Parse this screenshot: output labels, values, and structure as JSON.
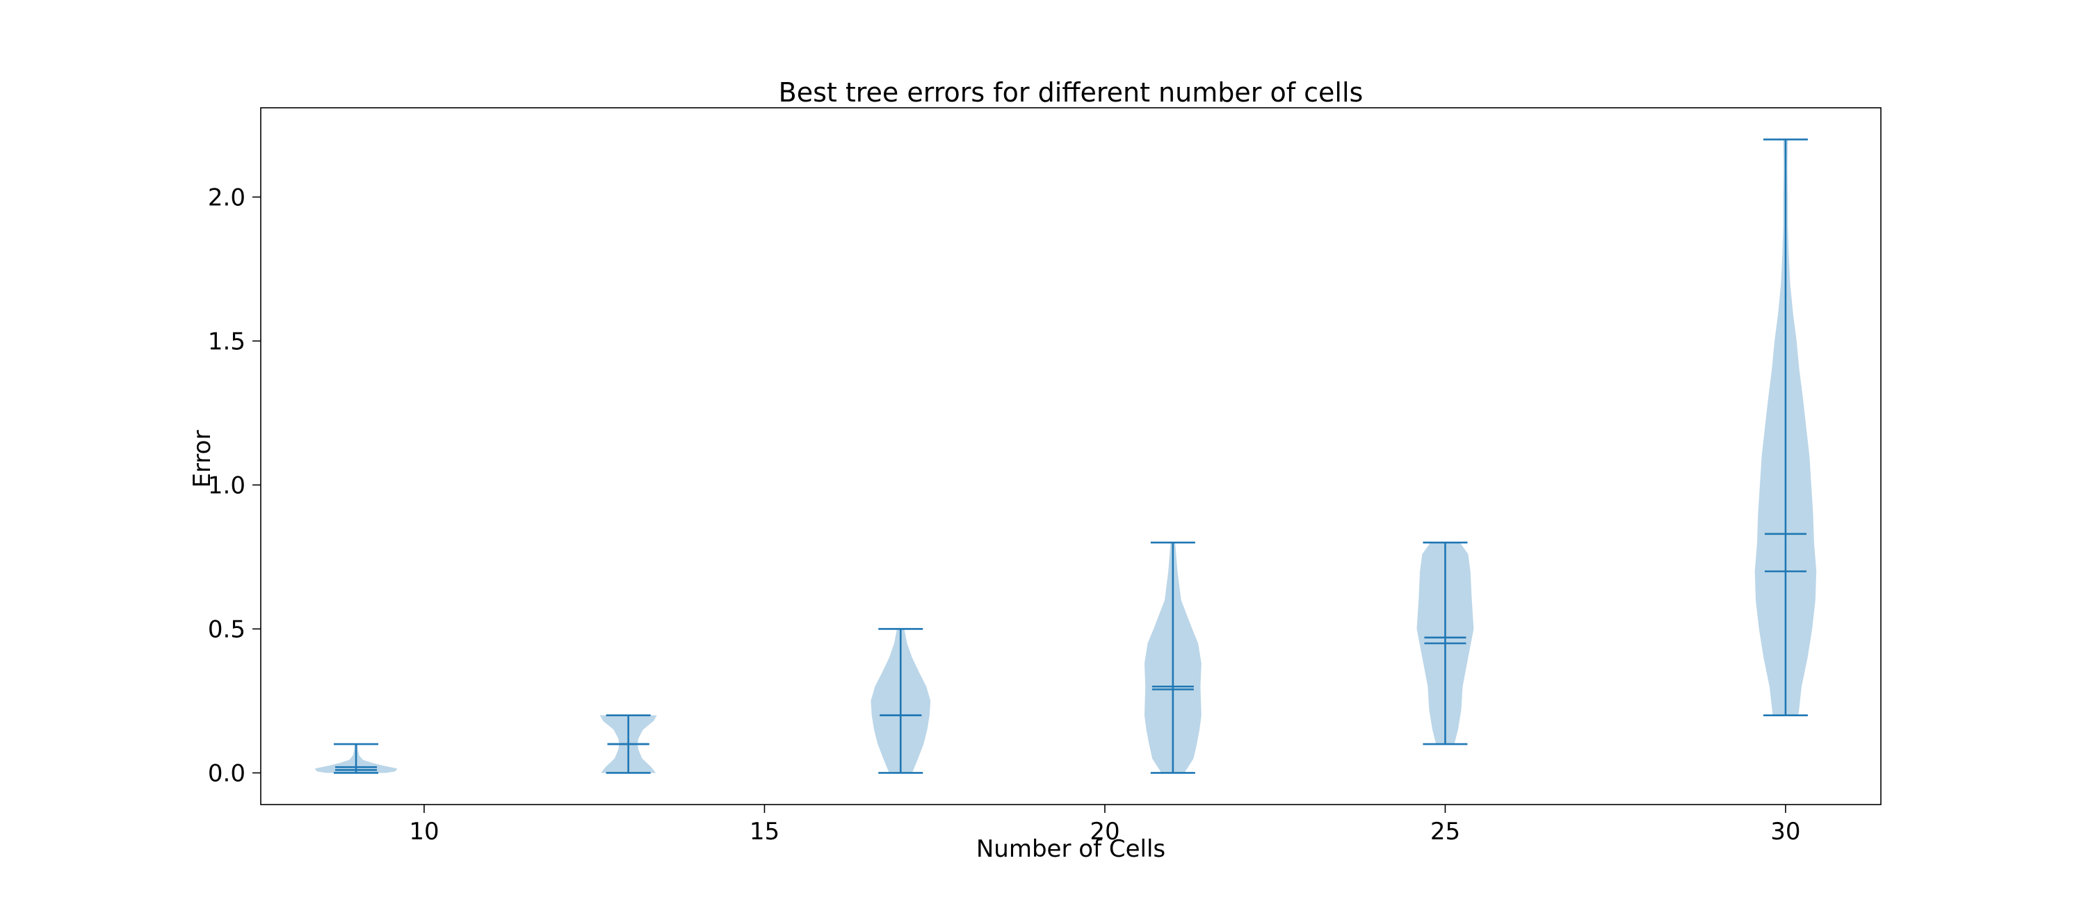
{
  "chart_data": {
    "type": "violin",
    "title": "Best tree errors for different number of cells",
    "xlabel": "Number of Cells",
    "ylabel": "Error",
    "xlim": [
      7.6,
      31.4
    ],
    "ylim": [
      -0.11,
      2.31
    ],
    "xticks": [
      10,
      15,
      20,
      25,
      30
    ],
    "yticks": [
      0.0,
      0.5,
      1.0,
      1.5,
      2.0
    ],
    "ytick_labels": [
      "0.0",
      "0.5",
      "1.0",
      "1.5",
      "2.0"
    ],
    "grid": false,
    "legend": "none",
    "colors": {
      "body": "#1f77b4",
      "body_opacity": 0.3,
      "line": "#1f77b4",
      "axis": "#000000"
    },
    "violins": [
      {
        "x": 9,
        "min": 0.0,
        "max": 0.1,
        "mean": 0.02,
        "median": 0.01,
        "density": [
          [
            0.0,
            0.65
          ],
          [
            0.005,
            0.85
          ],
          [
            0.015,
            0.9
          ],
          [
            0.025,
            0.6
          ],
          [
            0.035,
            0.35
          ],
          [
            0.045,
            0.15
          ],
          [
            0.06,
            0.07
          ],
          [
            0.08,
            0.04
          ],
          [
            0.1,
            0.03
          ]
        ]
      },
      {
        "x": 13,
        "min": 0.0,
        "max": 0.2,
        "mean": 0.1,
        "median": 0.1,
        "density": [
          [
            0.0,
            0.6
          ],
          [
            0.02,
            0.5
          ],
          [
            0.05,
            0.3
          ],
          [
            0.08,
            0.22
          ],
          [
            0.1,
            0.2
          ],
          [
            0.12,
            0.22
          ],
          [
            0.15,
            0.32
          ],
          [
            0.18,
            0.55
          ],
          [
            0.2,
            0.62
          ]
        ]
      },
      {
        "x": 17,
        "min": 0.0,
        "max": 0.5,
        "mean": 0.2,
        "median": 0.2,
        "density": [
          [
            0.0,
            0.25
          ],
          [
            0.05,
            0.38
          ],
          [
            0.1,
            0.5
          ],
          [
            0.15,
            0.58
          ],
          [
            0.2,
            0.63
          ],
          [
            0.25,
            0.65
          ],
          [
            0.3,
            0.56
          ],
          [
            0.35,
            0.4
          ],
          [
            0.4,
            0.25
          ],
          [
            0.45,
            0.14
          ],
          [
            0.5,
            0.08
          ]
        ]
      },
      {
        "x": 21,
        "min": 0.0,
        "max": 0.8,
        "mean": 0.3,
        "median": 0.29,
        "density": [
          [
            0.0,
            0.25
          ],
          [
            0.05,
            0.45
          ],
          [
            0.1,
            0.52
          ],
          [
            0.15,
            0.58
          ],
          [
            0.2,
            0.62
          ],
          [
            0.3,
            0.6
          ],
          [
            0.38,
            0.62
          ],
          [
            0.45,
            0.55
          ],
          [
            0.5,
            0.42
          ],
          [
            0.55,
            0.3
          ],
          [
            0.6,
            0.18
          ],
          [
            0.7,
            0.1
          ],
          [
            0.8,
            0.05
          ]
        ]
      },
      {
        "x": 25,
        "min": 0.1,
        "max": 0.8,
        "mean": 0.47,
        "median": 0.45,
        "density": [
          [
            0.1,
            0.2
          ],
          [
            0.15,
            0.28
          ],
          [
            0.22,
            0.35
          ],
          [
            0.3,
            0.38
          ],
          [
            0.4,
            0.5
          ],
          [
            0.5,
            0.62
          ],
          [
            0.6,
            0.58
          ],
          [
            0.7,
            0.55
          ],
          [
            0.76,
            0.5
          ],
          [
            0.8,
            0.32
          ]
        ]
      },
      {
        "x": 30,
        "min": 0.2,
        "max": 2.2,
        "mean": 0.83,
        "median": 0.7,
        "density": [
          [
            0.2,
            0.28
          ],
          [
            0.3,
            0.35
          ],
          [
            0.4,
            0.48
          ],
          [
            0.5,
            0.58
          ],
          [
            0.6,
            0.65
          ],
          [
            0.7,
            0.67
          ],
          [
            0.8,
            0.62
          ],
          [
            0.9,
            0.6
          ],
          [
            1.0,
            0.56
          ],
          [
            1.1,
            0.52
          ],
          [
            1.2,
            0.45
          ],
          [
            1.3,
            0.38
          ],
          [
            1.4,
            0.3
          ],
          [
            1.5,
            0.24
          ],
          [
            1.6,
            0.16
          ],
          [
            1.7,
            0.1
          ],
          [
            1.8,
            0.07
          ],
          [
            1.9,
            0.05
          ],
          [
            2.0,
            0.05
          ],
          [
            2.1,
            0.04
          ],
          [
            2.2,
            0.05
          ]
        ]
      }
    ]
  }
}
